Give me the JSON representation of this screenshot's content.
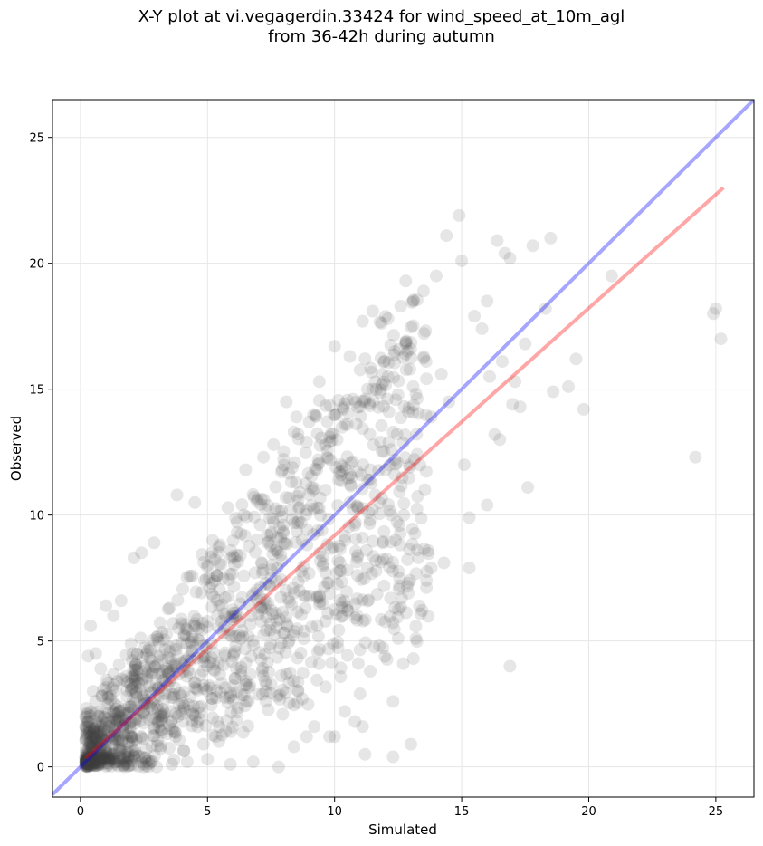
{
  "chart_data": {
    "type": "scatter",
    "title_line1": "X-Y plot at vi.vegagerdin.33424 for wind_speed_at_10m_agl",
    "title_line2": "from 36-42h during autumn",
    "xlabel": "Simulated",
    "ylabel": "Observed",
    "xlim": [
      -1.1,
      26.5
    ],
    "ylim": [
      -1.2,
      26.5
    ],
    "xticks": [
      0,
      5,
      10,
      15,
      20,
      25
    ],
    "yticks": [
      0,
      5,
      10,
      15,
      20,
      25
    ],
    "grid": true,
    "point_color": "#404040",
    "identity_line_color": "#0000ff",
    "fit_line_color": "#ff0000",
    "identity_line": {
      "x": [
        -1.1,
        26.5
      ],
      "y": [
        -1.1,
        26.5
      ]
    },
    "fit_line": {
      "x": [
        0.2,
        25.3
      ],
      "y": [
        0.35,
        23.0
      ]
    },
    "points": [
      [
        0.3,
        4.4
      ],
      [
        0.4,
        5.6
      ],
      [
        0.6,
        4.5
      ],
      [
        0.8,
        3.9
      ],
      [
        1.0,
        6.4
      ],
      [
        1.3,
        6.0
      ],
      [
        1.6,
        6.6
      ],
      [
        0.5,
        3.0
      ],
      [
        0.2,
        1.6
      ],
      [
        0.6,
        0.8
      ],
      [
        1.1,
        0.5
      ],
      [
        1.8,
        0.2
      ],
      [
        2.5,
        0.0
      ],
      [
        3.0,
        0.0
      ],
      [
        3.6,
        0.1
      ],
      [
        4.2,
        0.2
      ],
      [
        5.0,
        0.3
      ],
      [
        5.9,
        0.1
      ],
      [
        6.8,
        0.2
      ],
      [
        7.8,
        0.0
      ],
      [
        8.4,
        0.8
      ],
      [
        9.2,
        1.6
      ],
      [
        10.0,
        1.2
      ],
      [
        11.2,
        0.5
      ],
      [
        12.3,
        0.4
      ],
      [
        13.0,
        0.9
      ],
      [
        2.1,
        8.3
      ],
      [
        2.4,
        8.5
      ],
      [
        2.9,
        8.9
      ],
      [
        3.8,
        10.8
      ],
      [
        4.5,
        10.5
      ],
      [
        5.8,
        10.3
      ],
      [
        6.5,
        11.8
      ],
      [
        7.2,
        12.3
      ],
      [
        7.6,
        12.8
      ],
      [
        8.1,
        14.5
      ],
      [
        8.5,
        13.9
      ],
      [
        9.4,
        15.3
      ],
      [
        10.0,
        16.7
      ],
      [
        10.6,
        16.3
      ],
      [
        11.1,
        17.7
      ],
      [
        11.5,
        18.1
      ],
      [
        12.1,
        17.8
      ],
      [
        12.6,
        18.3
      ],
      [
        12.8,
        19.3
      ],
      [
        13.1,
        18.5
      ],
      [
        13.5,
        18.9
      ],
      [
        14.0,
        19.5
      ],
      [
        14.4,
        21.1
      ],
      [
        14.9,
        21.9
      ],
      [
        15.0,
        20.1
      ],
      [
        15.5,
        17.9
      ],
      [
        15.8,
        17.4
      ],
      [
        16.0,
        18.5
      ],
      [
        16.4,
        20.9
      ],
      [
        16.7,
        20.4
      ],
      [
        16.9,
        20.2
      ],
      [
        17.8,
        20.7
      ],
      [
        18.5,
        21.0
      ],
      [
        18.3,
        18.2
      ],
      [
        17.5,
        16.8
      ],
      [
        16.1,
        15.5
      ],
      [
        16.6,
        16.1
      ],
      [
        17.1,
        15.3
      ],
      [
        18.6,
        14.9
      ],
      [
        19.2,
        15.1
      ],
      [
        19.5,
        16.2
      ],
      [
        19.8,
        14.2
      ],
      [
        20.9,
        19.5
      ],
      [
        16.3,
        13.2
      ],
      [
        15.1,
        12.0
      ],
      [
        16.0,
        10.4
      ],
      [
        15.3,
        9.9
      ],
      [
        16.5,
        13.0
      ],
      [
        17.0,
        14.4
      ],
      [
        17.3,
        14.3
      ],
      [
        17.6,
        11.1
      ],
      [
        15.3,
        7.9
      ],
      [
        14.3,
        8.1
      ],
      [
        13.8,
        7.9
      ],
      [
        13.3,
        8.3
      ],
      [
        12.9,
        7.3
      ],
      [
        12.5,
        5.1
      ],
      [
        12.2,
        6.7
      ],
      [
        13.2,
        5.1
      ],
      [
        13.1,
        4.3
      ],
      [
        12.7,
        4.1
      ],
      [
        12.3,
        2.6
      ],
      [
        11.4,
        3.8
      ],
      [
        11.0,
        2.9
      ],
      [
        10.4,
        2.2
      ],
      [
        10.8,
        1.8
      ],
      [
        11.1,
        1.6
      ],
      [
        9.8,
        1.2
      ],
      [
        8.9,
        1.2
      ],
      [
        16.9,
        4.0
      ],
      [
        24.2,
        12.3
      ],
      [
        24.9,
        18.0
      ],
      [
        25.0,
        18.2
      ],
      [
        25.2,
        17.0
      ],
      [
        10.6,
        10.5
      ],
      [
        11.3,
        11.4
      ],
      [
        12.0,
        11.8
      ],
      [
        11.6,
        10.8
      ],
      [
        12.4,
        9.0
      ],
      [
        11.9,
        8.9
      ],
      [
        10.9,
        8.3
      ],
      [
        10.2,
        7.8
      ],
      [
        9.5,
        9.4
      ],
      [
        10.8,
        9.6
      ],
      [
        11.8,
        12.9
      ],
      [
        12.3,
        13.3
      ],
      [
        12.9,
        14.1
      ],
      [
        13.2,
        14.8
      ],
      [
        13.8,
        13.9
      ],
      [
        14.5,
        14.5
      ],
      [
        14.2,
        15.6
      ],
      [
        13.6,
        16.1
      ],
      [
        12.8,
        16.4
      ],
      [
        12.1,
        15.5
      ],
      [
        11.5,
        15.0
      ],
      [
        11.0,
        14.3
      ],
      [
        10.5,
        13.6
      ],
      [
        10.1,
        13.0
      ],
      [
        9.7,
        12.3
      ],
      [
        9.3,
        11.8
      ],
      [
        8.9,
        12.9
      ],
      [
        8.4,
        13.3
      ],
      [
        9.0,
        13.7
      ],
      [
        9.8,
        13.1
      ]
    ]
  }
}
